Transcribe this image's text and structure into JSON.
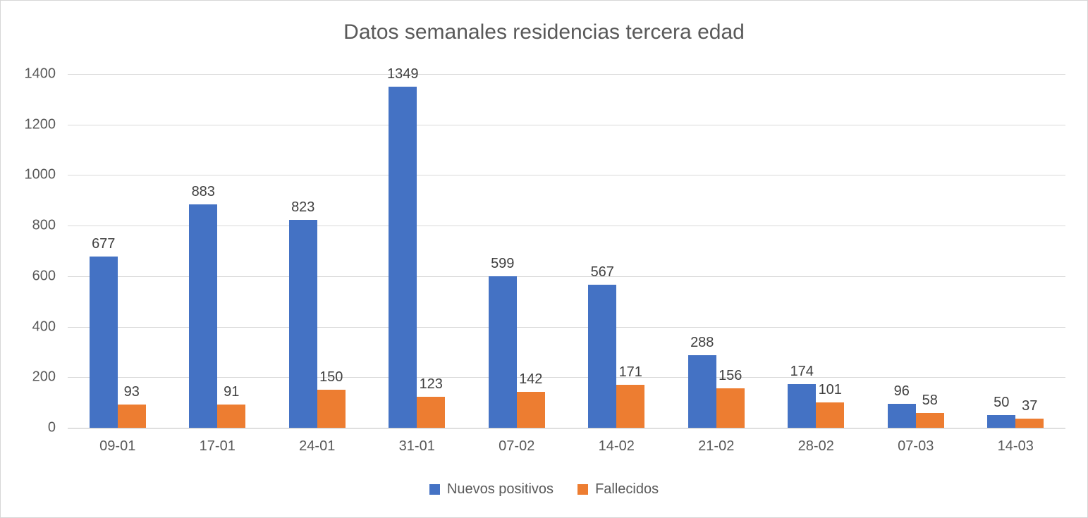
{
  "chart_data": {
    "type": "bar",
    "title": "Datos semanales residencias tercera edad",
    "categories": [
      "09-01",
      "17-01",
      "24-01",
      "31-01",
      "07-02",
      "14-02",
      "21-02",
      "28-02",
      "07-03",
      "14-03"
    ],
    "series": [
      {
        "name": "Nuevos positivos",
        "color": "#4472C4",
        "values": [
          677,
          883,
          823,
          1349,
          599,
          567,
          288,
          174,
          96,
          50
        ]
      },
      {
        "name": "Fallecidos",
        "color": "#ED7D31",
        "values": [
          93,
          91,
          150,
          123,
          142,
          171,
          156,
          101,
          58,
          37
        ]
      }
    ],
    "xlabel": "",
    "ylabel": "",
    "ylim": [
      0,
      1400
    ],
    "yticks": [
      0,
      200,
      400,
      600,
      800,
      1000,
      1200,
      1400
    ],
    "grid": "horizontal",
    "data_labels": true,
    "legend_position": "bottom"
  },
  "colors": {
    "background": "#ffffff",
    "frame_border": "#d6d6d6",
    "gridline": "#d9d9d9",
    "axis_line": "#bfbfbf",
    "title_text": "#595959",
    "axis_label_text": "#595959",
    "data_label_text": "#404040",
    "legend_text": "#595959",
    "series_blue": "#4472C4",
    "series_orange": "#ED7D31"
  }
}
